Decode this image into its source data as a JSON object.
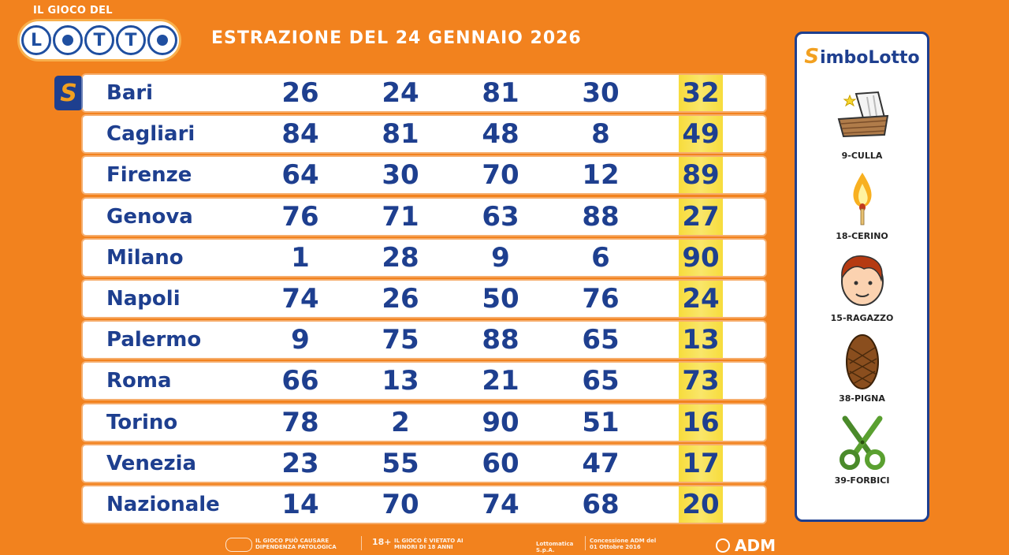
{
  "logo": {
    "tagline": "IL GIOCO DEL",
    "letters": [
      "L",
      "T",
      "T"
    ]
  },
  "header": {
    "title": "ESTRAZIONE DEL 24 GENNAIO 2026"
  },
  "badge": {
    "symbol": "S"
  },
  "draws": [
    {
      "city": "Bari",
      "numbers": [
        "26",
        "24",
        "81",
        "30",
        "32"
      ]
    },
    {
      "city": "Cagliari",
      "numbers": [
        "84",
        "81",
        "48",
        "8",
        "49"
      ]
    },
    {
      "city": "Firenze",
      "numbers": [
        "64",
        "30",
        "70",
        "12",
        "89"
      ]
    },
    {
      "city": "Genova",
      "numbers": [
        "76",
        "71",
        "63",
        "88",
        "27"
      ]
    },
    {
      "city": "Milano",
      "numbers": [
        "1",
        "28",
        "9",
        "6",
        "90"
      ]
    },
    {
      "city": "Napoli",
      "numbers": [
        "74",
        "26",
        "50",
        "76",
        "24"
      ]
    },
    {
      "city": "Palermo",
      "numbers": [
        "9",
        "75",
        "88",
        "65",
        "13"
      ]
    },
    {
      "city": "Roma",
      "numbers": [
        "66",
        "13",
        "21",
        "65",
        "73"
      ]
    },
    {
      "city": "Torino",
      "numbers": [
        "78",
        "2",
        "90",
        "51",
        "16"
      ]
    },
    {
      "city": "Venezia",
      "numbers": [
        "23",
        "55",
        "60",
        "47",
        "17"
      ]
    },
    {
      "city": "Nazionale",
      "numbers": [
        "14",
        "70",
        "74",
        "68",
        "20"
      ]
    }
  ],
  "simbolotto": {
    "title_initial": "S",
    "title_rest": "imboLotto",
    "symbols": [
      {
        "label": "9-CULLA",
        "icon": "cradle-icon"
      },
      {
        "label": "18-CERINO",
        "icon": "match-icon"
      },
      {
        "label": "15-RAGAZZO",
        "icon": "boy-face-icon"
      },
      {
        "label": "38-PIGNA",
        "icon": "pinecone-icon"
      },
      {
        "label": "39-FORBICI",
        "icon": "scissors-icon"
      }
    ]
  },
  "footer": {
    "warning1": "IL GIOCO PUÒ CAUSARE DIPENDENZA PATOLOGICA",
    "age": "18+",
    "warning2": "IL GIOCO È VIETATO AI MINORI DI 18 ANNI",
    "operator": "Lottomatica S.p.A.",
    "concession": "Concessione ADM del 01 Ottobre 2016",
    "adm": "ADM"
  },
  "colors": {
    "background": "#f2821e",
    "text_blue": "#1e3f8f",
    "highlight_yellow": "#f7dc3c",
    "accent_orange": "#f2a020"
  }
}
